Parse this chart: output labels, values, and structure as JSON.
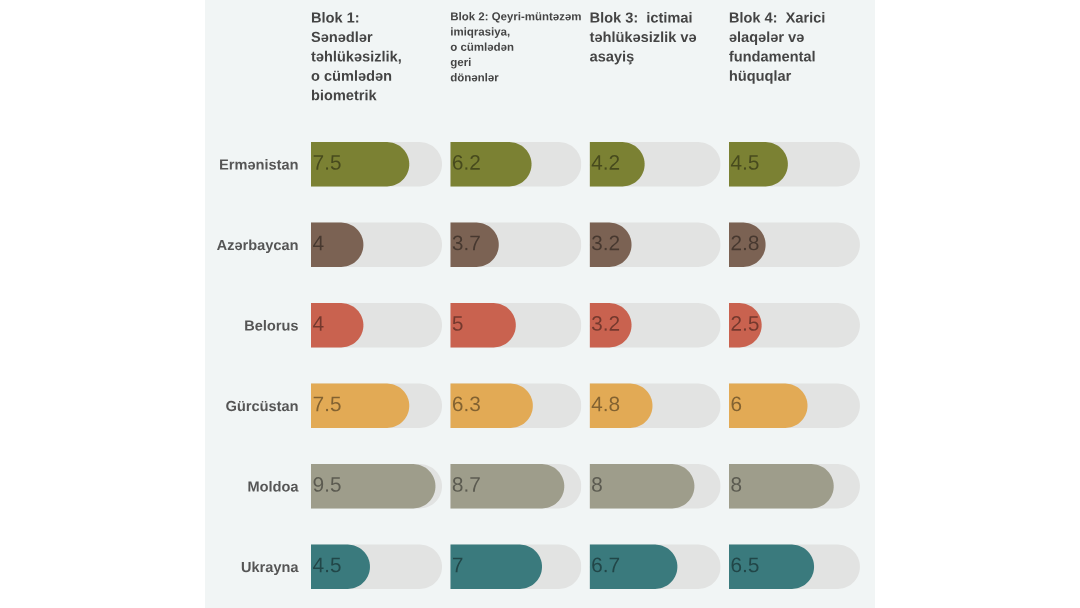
{
  "chart_data": [
    {
      "type": "bar",
      "orientation": "horizontal",
      "title": "Blok 1:\nSənədlər\ntəhlükəsizlik,\no cümlədən\nbiometrik",
      "categories": [
        "Ermənistan",
        "Azərbaycan",
        "Belorus",
        "Gürcüstan",
        "Moldoa",
        "Ukrayna"
      ],
      "values": [
        7.5,
        4,
        4,
        7.5,
        9.5,
        4.5
      ],
      "colors": [
        "#7b8133",
        "#7b6253",
        "#c9624f",
        "#e2aa55",
        "#9e9d8b",
        "#3a7a7d"
      ],
      "xlim": [
        0,
        10
      ],
      "data_labels": true,
      "tick_labels": "y"
    },
    {
      "type": "bar",
      "orientation": "horizontal",
      "title": "Blok 2: Qeyri-müntəzəm\nimiqrasiya,\no cümlədən\ngeri\ndönənlər",
      "values": [
        6.2,
        3.7,
        5,
        6.3,
        8.7,
        7
      ],
      "colors": [
        "#7b8133",
        "#7b6253",
        "#c9624f",
        "#e2aa55",
        "#9e9d8b",
        "#3a7a7d"
      ],
      "xlim": [
        0,
        10
      ],
      "data_labels": true
    },
    {
      "type": "bar",
      "orientation": "horizontal",
      "title": "Blok 3:  ictimai\ntəhlükəsizlik və\nasayiş",
      "values": [
        4.2,
        3.2,
        3.2,
        4.8,
        8,
        6.7
      ],
      "colors": [
        "#7b8133",
        "#7b6253",
        "#c9624f",
        "#e2aa55",
        "#9e9d8b",
        "#3a7a7d"
      ],
      "xlim": [
        0,
        10
      ],
      "data_labels": true
    },
    {
      "type": "bar",
      "orientation": "horizontal",
      "title": "Blok 4:  Xarici\nəlaqələr və\nfundamental\nhüquqlar",
      "values": [
        4.5,
        2.8,
        2.5,
        6,
        8,
        6.5
      ],
      "colors": [
        "#7b8133",
        "#7b6253",
        "#c9624f",
        "#e2aa55",
        "#9e9d8b",
        "#3a7a7d"
      ],
      "xlim": [
        0,
        10
      ],
      "data_labels": true
    }
  ]
}
